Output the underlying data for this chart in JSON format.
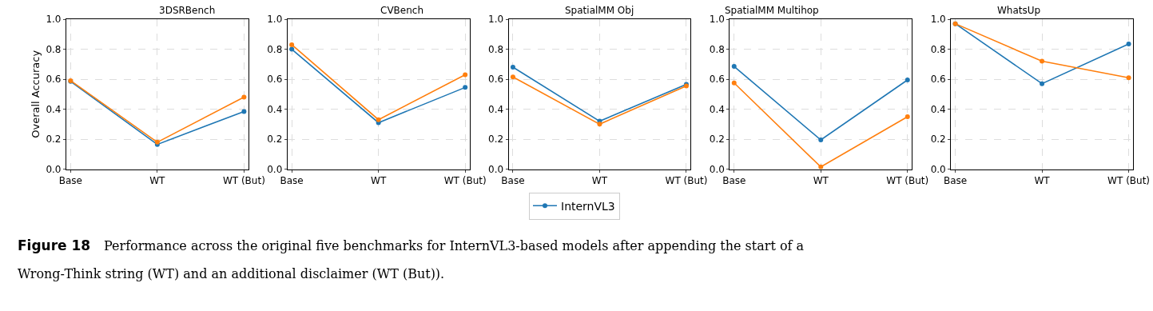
{
  "chart_data": [
    {
      "type": "line",
      "title": "3DSRBench",
      "ylabel": "Overall Accuracy",
      "categories": [
        "Base",
        "WT",
        "WT (But)"
      ],
      "ylim": [
        0,
        1
      ],
      "yticks": [
        {
          "value": 0,
          "label": "0.0"
        },
        {
          "value": 0.2,
          "label": "0.2"
        },
        {
          "value": 0.4,
          "label": "0.4"
        },
        {
          "value": 0.6,
          "label": "0.6"
        },
        {
          "value": 0.8,
          "label": "0.8"
        },
        {
          "value": 1,
          "label": "1.0"
        }
      ],
      "grid": true,
      "marker": "circle",
      "series": [
        {
          "name": "InternVL3",
          "color": "#1f77b4",
          "values": [
            0.585,
            0.165,
            0.385
          ]
        },
        {
          "color": "#ff7f0e",
          "values": [
            0.59,
            0.18,
            0.48
          ]
        }
      ],
      "annotations": [
        "Figure 18",
        "Performance across the original five benchmarks for InternVL3-based models after appending the start of a",
        "Wrong-Think string (WT) and an additional disclaimer (WT (But))."
      ]
    },
    {
      "type": "line",
      "title": "CVBench",
      "categories": [
        "Base",
        "WT",
        "WT (But)"
      ],
      "ylim": [
        0,
        1
      ],
      "yticks": [
        {
          "value": 0,
          "label": "0.0"
        },
        {
          "value": 0.2,
          "label": "0.2"
        },
        {
          "value": 0.4,
          "label": "0.4"
        },
        {
          "value": 0.6,
          "label": "0.6"
        },
        {
          "value": 0.8,
          "label": "0.8"
        },
        {
          "value": 1,
          "label": "1.0"
        }
      ],
      "grid": true,
      "marker": "circle",
      "series": [
        {
          "name": "InternVL3",
          "color": "#1f77b4",
          "values": [
            0.8,
            0.31,
            0.545
          ]
        },
        {
          "color": "#ff7f0e",
          "values": [
            0.83,
            0.33,
            0.63
          ]
        }
      ]
    },
    {
      "type": "line",
      "title": "SpatialMM Obj",
      "categories": [
        "Base",
        "WT",
        "WT (But)"
      ],
      "ylim": [
        0,
        1
      ],
      "yticks": [
        {
          "value": 0,
          "label": "0.0"
        },
        {
          "value": 0.2,
          "label": "0.2"
        },
        {
          "value": 0.4,
          "label": "0.4"
        },
        {
          "value": 0.6,
          "label": "0.6"
        },
        {
          "value": 0.8,
          "label": "0.8"
        },
        {
          "value": 1,
          "label": "1.0"
        }
      ],
      "grid": true,
      "marker": "circle",
      "legend": "bottom",
      "series": [
        {
          "name": "InternVL3",
          "color": "#1f77b4",
          "values": [
            0.68,
            0.32,
            0.565
          ]
        },
        {
          "color": "#ff7f0e",
          "values": [
            0.615,
            0.3,
            0.555
          ]
        }
      ]
    },
    {
      "type": "line",
      "title": "SpatialMM Multihop",
      "categories": [
        "Base",
        "WT",
        "WT (But)"
      ],
      "ylim": [
        0,
        1
      ],
      "yticks": [
        {
          "value": 0,
          "label": "0.0"
        },
        {
          "value": 0.2,
          "label": "0.2"
        },
        {
          "value": 0.4,
          "label": "0.4"
        },
        {
          "value": 0.6,
          "label": "0.6"
        },
        {
          "value": 0.8,
          "label": "0.8"
        },
        {
          "value": 1,
          "label": "1.0"
        }
      ],
      "grid": true,
      "marker": "circle",
      "series": [
        {
          "name": "InternVL3",
          "color": "#1f77b4",
          "values": [
            0.685,
            0.195,
            0.595
          ]
        },
        {
          "color": "#ff7f0e",
          "values": [
            0.575,
            0.015,
            0.35
          ]
        }
      ]
    },
    {
      "type": "line",
      "title": "WhatsUp",
      "categories": [
        "Base",
        "WT",
        "WT (But)"
      ],
      "ylim": [
        0,
        1
      ],
      "yticks": [
        {
          "value": 0,
          "label": "0.0"
        },
        {
          "value": 0.2,
          "label": "0.2"
        },
        {
          "value": 0.4,
          "label": "0.4"
        },
        {
          "value": 0.6,
          "label": "0.6"
        },
        {
          "value": 0.8,
          "label": "0.8"
        },
        {
          "value": 1,
          "label": "1.0"
        }
      ],
      "grid": true,
      "marker": "circle",
      "series": [
        {
          "name": "InternVL3",
          "color": "#1f77b4",
          "values": [
            0.97,
            0.57,
            0.835
          ]
        },
        {
          "color": "#ff7f0e",
          "values": [
            0.97,
            0.72,
            0.61
          ]
        }
      ]
    }
  ]
}
